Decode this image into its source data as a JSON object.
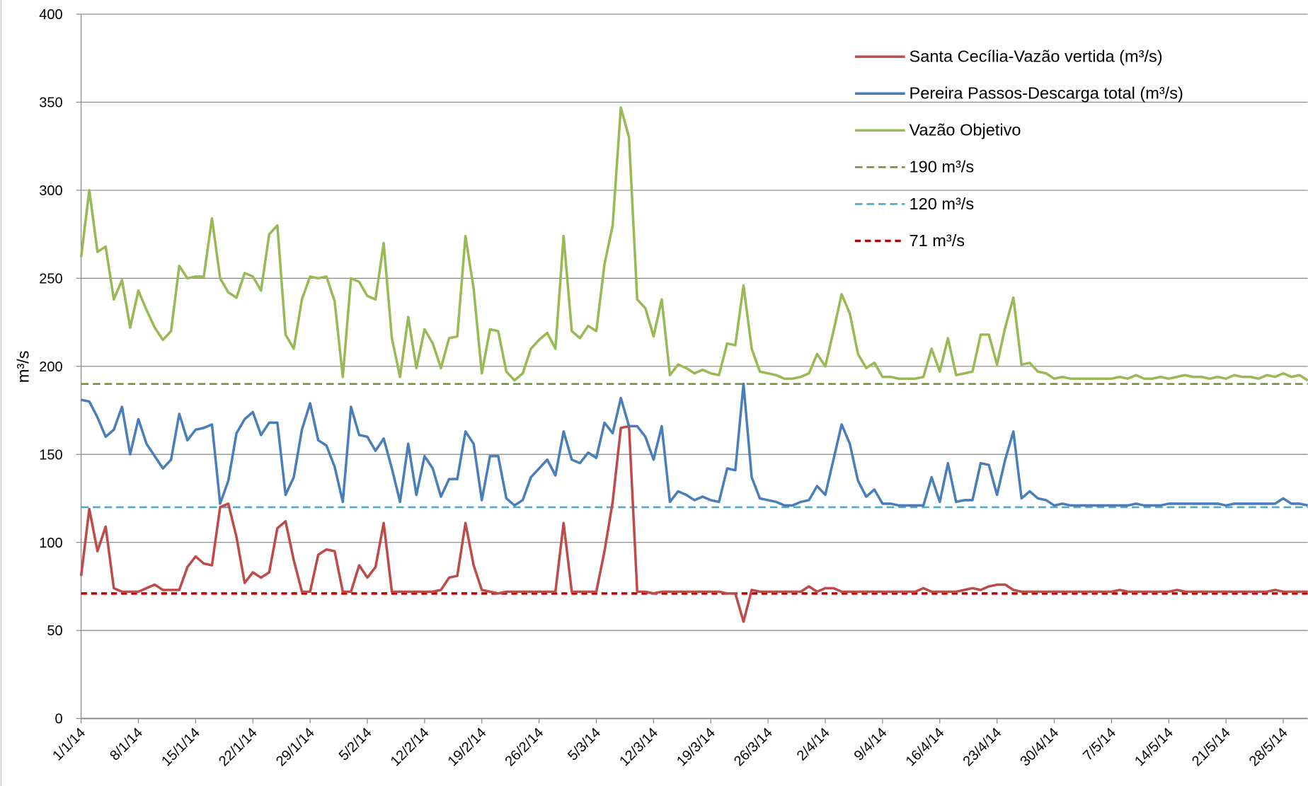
{
  "chart_data": {
    "type": "line",
    "y_label": "m³/s",
    "categories": [
      "1/1/14",
      null,
      null,
      null,
      null,
      null,
      null,
      "8/1/14",
      null,
      null,
      null,
      null,
      null,
      null,
      "15/1/14",
      null,
      null,
      null,
      null,
      null,
      null,
      "22/1/14",
      null,
      null,
      null,
      null,
      null,
      null,
      "29/1/14",
      null,
      null,
      null,
      null,
      null,
      null,
      "5/2/14",
      null,
      null,
      null,
      null,
      null,
      null,
      "12/2/14",
      null,
      null,
      null,
      null,
      null,
      null,
      "19/2/14",
      null,
      null,
      null,
      null,
      null,
      null,
      "26/2/14",
      null,
      null,
      null,
      null,
      null,
      null,
      "5/3/14",
      null,
      null,
      null,
      null,
      null,
      null,
      "12/3/14",
      null,
      null,
      null,
      null,
      null,
      null,
      "19/3/14",
      null,
      null,
      null,
      null,
      null,
      null,
      "26/3/14",
      null,
      null,
      null,
      null,
      null,
      null,
      "2/4/14",
      null,
      null,
      null,
      null,
      null,
      null,
      "9/4/14",
      null,
      null,
      null,
      null,
      null,
      null,
      "16/4/14",
      null,
      null,
      null,
      null,
      null,
      null,
      "23/4/14",
      null,
      null,
      null,
      null,
      null,
      null,
      "30/4/14",
      null,
      null,
      null,
      null,
      null,
      null,
      "7/5/14",
      null,
      null,
      null,
      null,
      null,
      null,
      "14/5/14",
      null,
      null,
      null,
      null,
      null,
      null,
      "21/5/14",
      null,
      null,
      null,
      null,
      null,
      null,
      "28/5/14",
      null,
      null,
      null
    ],
    "series": [
      {
        "name": "Santa Cecília-Vazão vertida (m³/s)",
        "color": "#be4b48",
        "values": [
          81,
          119,
          95,
          109,
          74,
          72,
          72,
          72,
          74,
          76,
          73,
          73,
          73,
          86,
          92,
          88,
          87,
          120,
          122,
          103,
          77,
          83,
          80,
          83,
          108,
          112,
          90,
          72,
          72,
          93,
          96,
          95,
          72,
          72,
          87,
          80,
          86,
          111,
          72,
          72,
          72,
          72,
          72,
          72,
          73,
          80,
          81,
          111,
          87,
          73,
          72,
          71,
          72,
          72,
          72,
          72,
          72,
          72,
          72,
          111,
          72,
          72,
          72,
          72,
          95,
          123,
          165,
          166,
          72,
          72,
          71,
          72,
          72,
          72,
          72,
          72,
          72,
          72,
          72,
          71,
          71,
          55,
          73,
          72,
          72,
          72,
          72,
          72,
          72,
          75,
          72,
          74,
          74,
          72,
          72,
          72,
          72,
          72,
          72,
          72,
          72,
          72,
          72,
          74,
          72,
          72,
          72,
          72,
          73,
          74,
          73,
          75,
          76,
          76,
          73,
          72,
          72,
          72,
          72,
          72,
          72,
          72,
          72,
          72,
          72,
          72,
          72,
          73,
          72,
          72,
          72,
          72,
          72,
          72,
          73,
          72,
          72,
          72,
          72,
          72,
          72,
          72,
          72,
          72,
          72,
          72,
          73,
          72,
          72,
          72,
          72
        ]
      },
      {
        "name": "Pereira Passos-Descarga total (m³/s)",
        "color": "#4a7ebb",
        "values": [
          181,
          180,
          171,
          160,
          164,
          177,
          150,
          170,
          156,
          149,
          142,
          147,
          173,
          158,
          164,
          165,
          167,
          122,
          135,
          162,
          170,
          174,
          161,
          168,
          168,
          127,
          137,
          164,
          179,
          158,
          155,
          143,
          123,
          177,
          161,
          160,
          152,
          159,
          142,
          123,
          156,
          127,
          149,
          142,
          126,
          136,
          136,
          163,
          156,
          124,
          149,
          149,
          125,
          121,
          124,
          137,
          142,
          147,
          138,
          163,
          147,
          145,
          151,
          148,
          168,
          162,
          182,
          166,
          166,
          160,
          147,
          166,
          123,
          129,
          127,
          124,
          126,
          124,
          123,
          142,
          141,
          190,
          137,
          125,
          124,
          123,
          121,
          121,
          123,
          124,
          132,
          127,
          147,
          167,
          156,
          135,
          126,
          130,
          122,
          122,
          121,
          121,
          121,
          121,
          137,
          123,
          145,
          123,
          124,
          124,
          145,
          144,
          127,
          147,
          163,
          125,
          129,
          125,
          124,
          121,
          122,
          121,
          121,
          121,
          121,
          121,
          121,
          121,
          121,
          122,
          121,
          121,
          121,
          122,
          122,
          122,
          122,
          122,
          122,
          122,
          121,
          122,
          122,
          122,
          122,
          122,
          122,
          125,
          122,
          122,
          121
        ]
      },
      {
        "name": "Vazão Objetivo",
        "color": "#98b954",
        "values": [
          262,
          300,
          265,
          268,
          238,
          249,
          222,
          243,
          232,
          222,
          215,
          220,
          257,
          250,
          251,
          251,
          284,
          250,
          242,
          239,
          253,
          251,
          243,
          275,
          280,
          218,
          210,
          238,
          251,
          250,
          251,
          237,
          194,
          250,
          248,
          240,
          238,
          270,
          216,
          194,
          228,
          199,
          221,
          213,
          199,
          216,
          217,
          274,
          244,
          196,
          221,
          220,
          197,
          192,
          196,
          210,
          215,
          219,
          210,
          274,
          220,
          216,
          223,
          220,
          258,
          280,
          347,
          330,
          238,
          233,
          217,
          238,
          195,
          201,
          199,
          196,
          198,
          196,
          195,
          213,
          212,
          246,
          210,
          197,
          196,
          195,
          193,
          193,
          194,
          196,
          207,
          200,
          220,
          241,
          230,
          207,
          199,
          202,
          194,
          194,
          193,
          193,
          193,
          194,
          210,
          197,
          216,
          195,
          196,
          197,
          218,
          218,
          201,
          222,
          239,
          201,
          202,
          197,
          196,
          193,
          194,
          193,
          193,
          193,
          193,
          193,
          193,
          194,
          193,
          195,
          193,
          193,
          194,
          193,
          194,
          195,
          194,
          194,
          193,
          194,
          193,
          195,
          194,
          194,
          193,
          195,
          194,
          196,
          194,
          195,
          192
        ]
      }
    ],
    "reference_lines": [
      {
        "name": "190 m³/s",
        "value": 190,
        "color": "#77933c"
      },
      {
        "name": "120 m³/s",
        "value": 120,
        "color": "#4bacc6"
      },
      {
        "name": "71 m³/s",
        "value": 71,
        "color": "#c00000"
      }
    ],
    "ylim": [
      0,
      400
    ],
    "yticks": [
      0,
      50,
      100,
      150,
      200,
      250,
      300,
      350,
      400
    ],
    "grid": true,
    "legend": "upper right"
  }
}
